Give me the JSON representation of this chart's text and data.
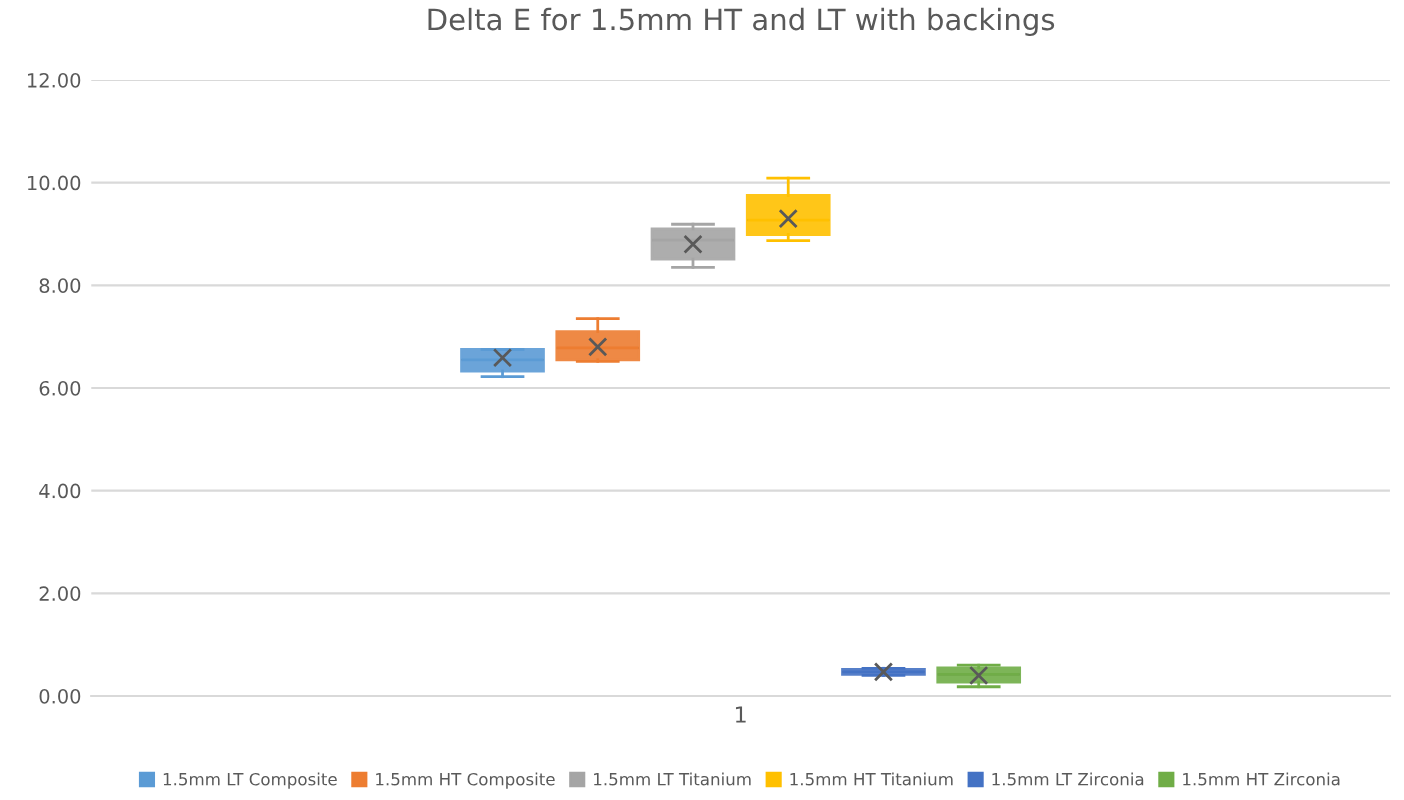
{
  "chart_data": {
    "type": "box",
    "title": "Delta E for 1.5mm HT and LT with backings",
    "categories": [
      "1"
    ],
    "ylim": [
      0,
      12
    ],
    "yticks": [
      {
        "value": 0,
        "label": "0.00"
      },
      {
        "value": 2,
        "label": "2.00"
      },
      {
        "value": 4,
        "label": "4.00"
      },
      {
        "value": 6,
        "label": "6.00"
      },
      {
        "value": 8,
        "label": "8.00"
      },
      {
        "value": 10,
        "label": "10.00"
      },
      {
        "value": 12,
        "label": "12.00"
      }
    ],
    "grid": "y",
    "legend": "bottom",
    "marker": "cross",
    "series": [
      {
        "name": "1.5mm LT Composite",
        "color": "#5b9bd5",
        "boxes": [
          {
            "low": 6.22,
            "q1": 6.33,
            "median": 6.55,
            "q3": 6.75,
            "high": 6.75,
            "mean": 6.59
          }
        ]
      },
      {
        "name": "1.5mm HT Composite",
        "color": "#ed7d31",
        "boxes": [
          {
            "low": 6.52,
            "q1": 6.55,
            "median": 6.78,
            "q3": 7.1,
            "high": 7.35,
            "mean": 6.8
          }
        ]
      },
      {
        "name": "1.5mm LT Titanium",
        "color": "#a5a5a5",
        "boxes": [
          {
            "low": 8.35,
            "q1": 8.51,
            "median": 8.88,
            "q3": 9.1,
            "high": 9.19,
            "mean": 8.8
          }
        ]
      },
      {
        "name": "1.5mm HT Titanium",
        "color": "#ffc000",
        "boxes": [
          {
            "low": 8.87,
            "q1": 8.99,
            "median": 9.27,
            "q3": 9.75,
            "high": 10.09,
            "mean": 9.3
          }
        ]
      },
      {
        "name": "1.5mm LT Zirconia",
        "color": "#4472c4",
        "boxes": [
          {
            "low": 0.4,
            "q1": 0.42,
            "median": 0.47,
            "q3": 0.52,
            "high": 0.54,
            "mean": 0.47
          }
        ]
      },
      {
        "name": "1.5mm HT Zirconia",
        "color": "#70ad47",
        "boxes": [
          {
            "low": 0.18,
            "q1": 0.27,
            "median": 0.42,
            "q3": 0.55,
            "high": 0.6,
            "mean": 0.4
          }
        ]
      }
    ]
  }
}
